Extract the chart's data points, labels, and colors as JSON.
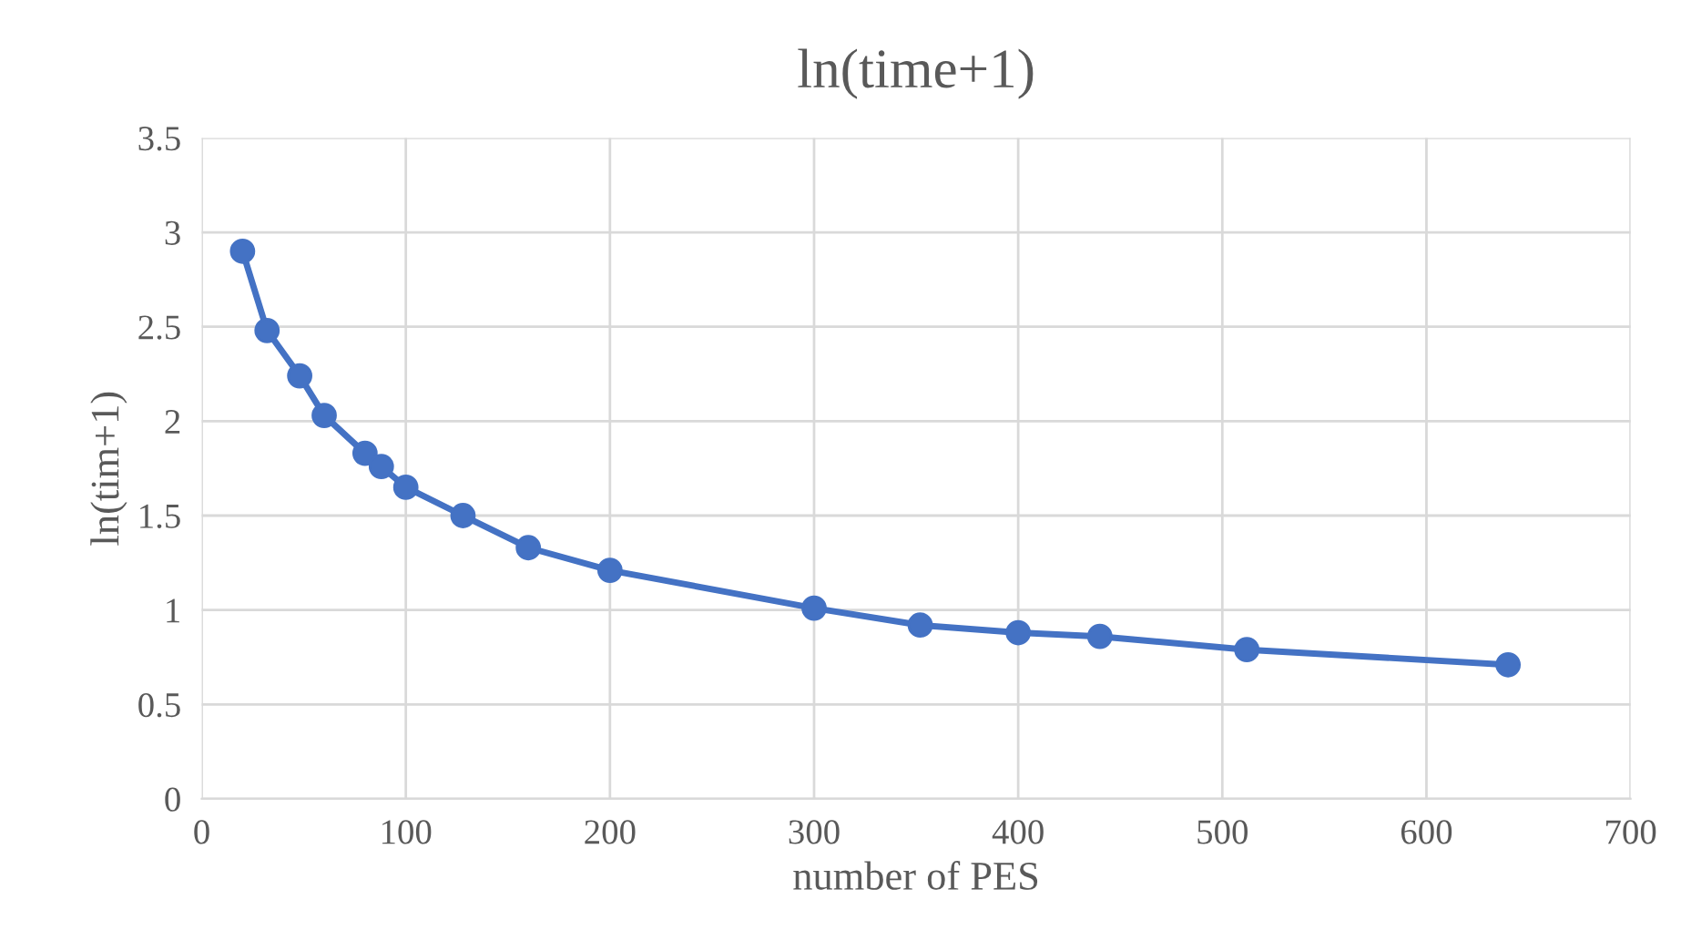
{
  "chart_data": {
    "type": "line",
    "title": "ln(time+1)",
    "xlabel": "number of PES",
    "ylabel": "ln(tim+1)",
    "x": [
      20,
      32,
      48,
      60,
      80,
      88,
      100,
      128,
      160,
      200,
      300,
      352,
      400,
      440,
      512,
      640
    ],
    "series": [
      {
        "color": "#4472c4",
        "values": [
          2.9,
          2.48,
          2.24,
          2.03,
          1.83,
          1.76,
          1.65,
          1.5,
          1.33,
          1.21,
          1.01,
          0.92,
          0.88,
          0.86,
          0.79,
          0.71
        ]
      }
    ],
    "xlim": [
      0,
      700
    ],
    "xticks": [
      0,
      100,
      200,
      300,
      400,
      500,
      600,
      700
    ],
    "ylim": [
      0,
      3.5
    ],
    "yticks": [
      0,
      0.5,
      1,
      1.5,
      2,
      2.5,
      3,
      3.5
    ],
    "grid": true,
    "legend": false,
    "marker": "circle",
    "line_style": "solid"
  }
}
